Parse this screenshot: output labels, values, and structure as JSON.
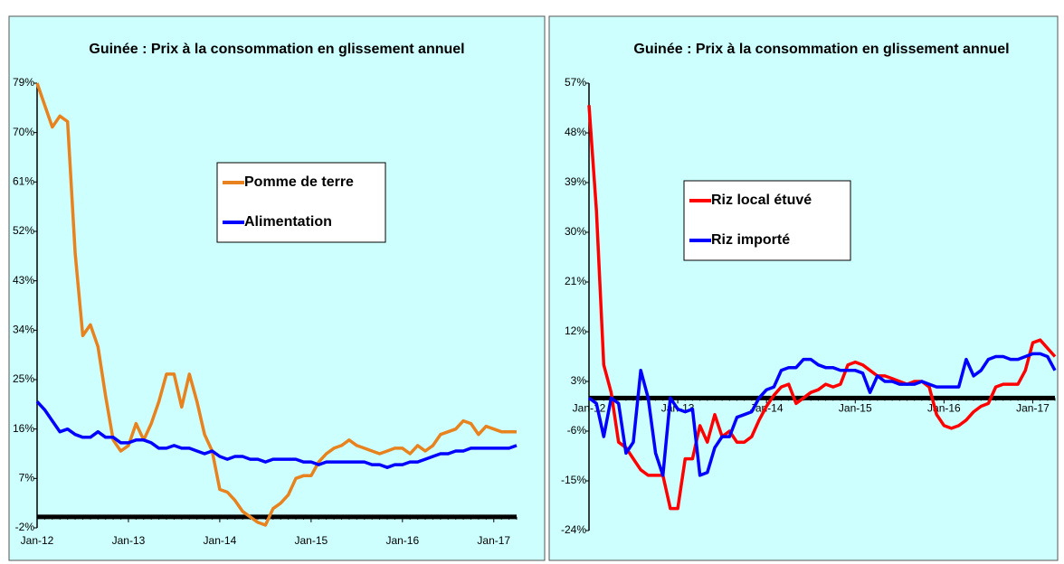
{
  "chart_data": [
    {
      "type": "line",
      "title": "Guinée : Prix à la consommation en glissement annuel",
      "categories": [
        "Jan-12",
        null,
        null,
        null,
        null,
        null,
        null,
        null,
        null,
        null,
        null,
        null,
        "Jan-13",
        null,
        null,
        null,
        null,
        null,
        null,
        null,
        null,
        null,
        null,
        null,
        "Jan-14",
        null,
        null,
        null,
        null,
        null,
        null,
        null,
        null,
        null,
        null,
        null,
        "Jan-15",
        null,
        null,
        null,
        null,
        null,
        null,
        null,
        null,
        null,
        null,
        null,
        "Jan-16",
        null,
        null,
        null,
        null,
        null,
        null,
        null,
        null,
        null,
        null,
        null,
        "Jan-17",
        null,
        null,
        null
      ],
      "series": [
        {
          "name": "Pomme de terre",
          "color": "#e8821e",
          "values": [
            79,
            75,
            71,
            73,
            72,
            48,
            33,
            35,
            31,
            22,
            14,
            12,
            13,
            17,
            14,
            17,
            21,
            26,
            26,
            20,
            26,
            21,
            15,
            12,
            5,
            4.5,
            3,
            1,
            0,
            -1,
            -1.5,
            1.5,
            2.5,
            4,
            7,
            7.5,
            7.5,
            10,
            11.5,
            12.5,
            13,
            14,
            13,
            12.5,
            12,
            11.5,
            12,
            12.5,
            12.5,
            11.5,
            13,
            12,
            13,
            15,
            15.5,
            16,
            17.5,
            17,
            15,
            16.5,
            16,
            15.5,
            15.5,
            15.5
          ]
        },
        {
          "name": "Alimentation",
          "color": "#0000ff",
          "values": [
            21,
            19.5,
            17.5,
            15.5,
            16,
            15,
            14.5,
            14.5,
            15.5,
            14.5,
            14.5,
            13.5,
            13.5,
            14,
            14,
            13.5,
            12.5,
            12.5,
            13,
            12.5,
            12.5,
            12,
            11.5,
            12,
            11,
            10.5,
            11,
            11,
            10.5,
            10.5,
            10,
            10.5,
            10.5,
            10.5,
            10.5,
            10,
            10,
            9.5,
            10,
            10,
            10,
            10,
            10,
            10,
            9.5,
            9.5,
            9,
            9.5,
            9.5,
            10,
            10,
            10.5,
            11,
            11.5,
            11.5,
            12,
            12,
            12.5,
            12.5,
            12.5,
            12.5,
            12.5,
            12.5,
            13
          ]
        }
      ],
      "ylim": [
        -2,
        79
      ],
      "yticks": [
        {
          "value": -2,
          "label": "-2%"
        },
        {
          "value": 7,
          "label": "7%"
        },
        {
          "value": 16,
          "label": "16%"
        },
        {
          "value": 25,
          "label": "25%"
        },
        {
          "value": 34,
          "label": "34%"
        },
        {
          "value": 43,
          "label": "43%"
        },
        {
          "value": 52,
          "label": "52%"
        },
        {
          "value": 61,
          "label": "61%"
        },
        {
          "value": 70,
          "label": "70%"
        },
        {
          "value": 79,
          "label": "79%"
        }
      ]
    },
    {
      "type": "line",
      "title": "Guinée : Prix à la consommation en glissement annuel",
      "categories": [
        "Jan-12",
        null,
        null,
        null,
        null,
        null,
        null,
        null,
        null,
        null,
        null,
        null,
        "Jan-13",
        null,
        null,
        null,
        null,
        null,
        null,
        null,
        null,
        null,
        null,
        null,
        "Jan-14",
        null,
        null,
        null,
        null,
        null,
        null,
        null,
        null,
        null,
        null,
        null,
        "Jan-15",
        null,
        null,
        null,
        null,
        null,
        null,
        null,
        null,
        null,
        null,
        null,
        "Jan-16",
        null,
        null,
        null,
        null,
        null,
        null,
        null,
        null,
        null,
        null,
        null,
        "Jan-17",
        null,
        null,
        null
      ],
      "series": [
        {
          "name": "Riz local étuvé",
          "color": "#ff0000",
          "values": [
            53,
            34,
            6,
            1,
            -8,
            -9,
            -11,
            -13,
            -14,
            -14,
            -14,
            -20,
            -20,
            -11,
            -11,
            -5,
            -8,
            -3,
            -7,
            -6,
            -8,
            -8,
            -7,
            -4,
            -1.5,
            0.5,
            2,
            2.5,
            -1,
            0,
            1,
            1.5,
            2.5,
            2,
            2.5,
            6,
            6.5,
            6,
            5,
            4,
            4,
            3.5,
            3,
            2.5,
            3,
            3,
            2,
            -3,
            -5,
            -5.5,
            -5,
            -4,
            -2.5,
            -1.5,
            -1,
            2,
            2.5,
            2.5,
            2.5,
            5,
            10,
            10.5,
            9,
            7.5
          ]
        },
        {
          "name": "Riz importé",
          "color": "#0000ff",
          "values": [
            0,
            -1,
            -7,
            0,
            -1,
            -10,
            -8,
            5,
            0,
            -10,
            -14,
            0,
            -2,
            -2.5,
            -2,
            -14,
            -13.5,
            -9,
            -7,
            -7,
            -3.5,
            -3,
            -2.5,
            0,
            1.5,
            2,
            5,
            5.5,
            5.5,
            7,
            7,
            6,
            5.5,
            5.5,
            5,
            5,
            5,
            4.5,
            1,
            4,
            3,
            3,
            2.5,
            2.5,
            2.5,
            3,
            2.5,
            2,
            2,
            2,
            2,
            7,
            4,
            5,
            7,
            7.5,
            7.5,
            7,
            7,
            7.5,
            8,
            8,
            7.5,
            5
          ]
        }
      ],
      "ylim": [
        -24,
        57
      ],
      "yticks": [
        {
          "value": -24,
          "label": "-24%"
        },
        {
          "value": -15,
          "label": "-15%"
        },
        {
          "value": -6,
          "label": "-6%"
        },
        {
          "value": 3,
          "label": "3%"
        },
        {
          "value": 12,
          "label": "12%"
        },
        {
          "value": 21,
          "label": "21%"
        },
        {
          "value": 30,
          "label": "30%"
        },
        {
          "value": 39,
          "label": "39%"
        },
        {
          "value": 48,
          "label": "48%"
        },
        {
          "value": 57,
          "label": "57%"
        }
      ]
    }
  ]
}
